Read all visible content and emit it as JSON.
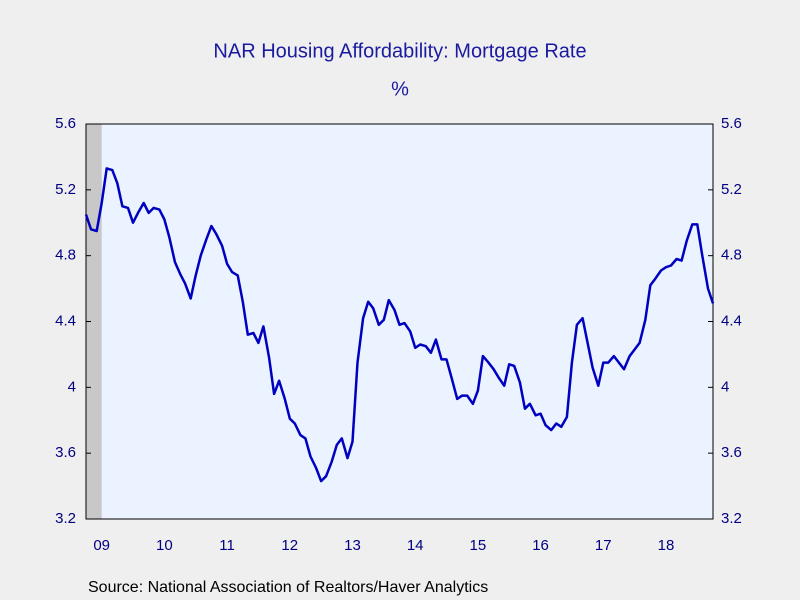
{
  "chart_data": {
    "type": "line",
    "title": "NAR Housing Affordability: Mortgage Rate",
    "subtitle": "%",
    "source": "Source:  National Association of Realtors/Haver Analytics",
    "x": [
      2009.25,
      2009.33,
      2009.42,
      2009.5,
      2009.58,
      2009.67,
      2009.75,
      2009.83,
      2009.92,
      2010,
      2010.08,
      2010.17,
      2010.25,
      2010.33,
      2010.42,
      2010.5,
      2010.58,
      2010.67,
      2010.75,
      2010.83,
      2010.92,
      2011,
      2011.08,
      2011.17,
      2011.25,
      2011.33,
      2011.42,
      2011.5,
      2011.58,
      2011.67,
      2011.75,
      2011.83,
      2011.92,
      2012,
      2012.08,
      2012.17,
      2012.25,
      2012.33,
      2012.42,
      2012.5,
      2012.58,
      2012.67,
      2012.75,
      2012.83,
      2012.92,
      2013,
      2013.08,
      2013.17,
      2013.25,
      2013.33,
      2013.42,
      2013.5,
      2013.58,
      2013.67,
      2013.75,
      2013.83,
      2013.92,
      2014,
      2014.08,
      2014.17,
      2014.25,
      2014.33,
      2014.42,
      2014.5,
      2014.58,
      2014.67,
      2014.75,
      2014.83,
      2014.92,
      2015,
      2015.08,
      2015.17,
      2015.25,
      2015.33,
      2015.42,
      2015.5,
      2015.58,
      2015.67,
      2015.75,
      2015.83,
      2015.92,
      2016,
      2016.08,
      2016.17,
      2016.25,
      2016.33,
      2016.42,
      2016.5,
      2016.58,
      2016.67,
      2016.75,
      2016.83,
      2016.92,
      2017,
      2017.08,
      2017.17,
      2017.25,
      2017.33,
      2017.42,
      2017.5,
      2017.58,
      2017.67,
      2017.75,
      2017.83,
      2017.92,
      2018,
      2018.08,
      2018.17,
      2018.25,
      2018.33,
      2018.42,
      2018.5,
      2018.58,
      2018.67,
      2018.75,
      2018.83,
      2018.92,
      2019,
      2019.08,
      2019.17,
      2019.25
    ],
    "series": [
      {
        "name": "Mortgage Rate",
        "color": "#0000c0",
        "values": [
          5.05,
          4.96,
          4.95,
          5.12,
          5.33,
          5.32,
          5.24,
          5.1,
          5.09,
          5.0,
          5.06,
          5.12,
          5.06,
          5.09,
          5.08,
          5.02,
          4.91,
          4.76,
          4.69,
          4.63,
          4.54,
          4.68,
          4.8,
          4.9,
          4.98,
          4.93,
          4.86,
          4.75,
          4.7,
          4.68,
          4.52,
          4.32,
          4.33,
          4.27,
          4.37,
          4.18,
          3.96,
          4.04,
          3.93,
          3.81,
          3.78,
          3.71,
          3.69,
          3.58,
          3.51,
          3.43,
          3.46,
          3.55,
          3.65,
          3.69,
          3.57,
          3.67,
          4.15,
          4.42,
          4.52,
          4.48,
          4.38,
          4.41,
          4.53,
          4.47,
          4.38,
          4.39,
          4.34,
          4.24,
          4.26,
          4.25,
          4.21,
          4.29,
          4.17,
          4.17,
          4.06,
          3.93,
          3.95,
          3.95,
          3.9,
          3.98,
          4.19,
          4.15,
          4.11,
          4.06,
          4.01,
          4.14,
          4.13,
          4.03,
          3.87,
          3.9,
          3.83,
          3.84,
          3.77,
          3.74,
          3.78,
          3.76,
          3.82,
          4.15,
          4.38,
          4.42,
          4.27,
          4.12,
          4.01,
          4.15,
          4.15,
          4.19,
          4.15,
          4.11,
          4.19,
          4.23,
          4.27,
          4.41,
          4.62,
          4.66,
          4.71,
          4.73,
          4.74,
          4.78,
          4.77,
          4.89,
          4.99,
          4.99,
          4.8,
          4.6,
          4.51
        ]
      }
    ],
    "xlim": [
      2009.25,
      2019.25
    ],
    "xticks": [
      {
        "value": 2009.5,
        "label": "09"
      },
      {
        "value": 2010.5,
        "label": "10"
      },
      {
        "value": 2011.5,
        "label": "11"
      },
      {
        "value": 2012.5,
        "label": "12"
      },
      {
        "value": 2013.5,
        "label": "13"
      },
      {
        "value": 2014.5,
        "label": "14"
      },
      {
        "value": 2015.5,
        "label": "15"
      },
      {
        "value": 2016.5,
        "label": "16"
      },
      {
        "value": 2017.5,
        "label": "17"
      },
      {
        "value": 2018.5,
        "label": "18"
      }
    ],
    "ylim": [
      3.2,
      5.6
    ],
    "yticks": [
      3.2,
      3.6,
      4.0,
      4.4,
      4.8,
      5.2,
      5.6
    ],
    "shaded_periods": [
      [
        2009.25,
        2009.5
      ]
    ],
    "plot_background": "#eaf3ff",
    "shade_color": "#c8c8c8"
  }
}
